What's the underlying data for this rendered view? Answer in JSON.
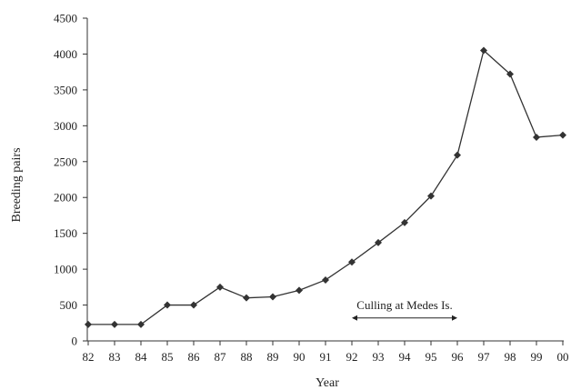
{
  "chart_data": {
    "type": "line",
    "title": "",
    "xlabel": "Year",
    "ylabel": "Breeding pairs",
    "categories": [
      "82",
      "83",
      "84",
      "85",
      "86",
      "87",
      "88",
      "89",
      "90",
      "91",
      "92",
      "93",
      "94",
      "95",
      "96",
      "97",
      "98",
      "99",
      "00"
    ],
    "series": [
      {
        "values": [
          230,
          230,
          230,
          500,
          500,
          750,
          600,
          615,
          705,
          850,
          1100,
          1370,
          1650,
          2020,
          2590,
          4050,
          3720,
          2840,
          2870
        ],
        "color": "#333333",
        "marker": "diamond"
      }
    ],
    "ylim": [
      0,
      4500
    ],
    "yticks": [
      "0",
      "500",
      "1000",
      "1500",
      "2000",
      "2500",
      "3000",
      "3500",
      "4000",
      "4500"
    ],
    "grid": false,
    "legend": "none",
    "annotations": [
      {
        "text": "Culling at Medes Is.",
        "x_start": "92",
        "x_end": "96",
        "y": 320,
        "arrow": "double-headed"
      }
    ]
  }
}
